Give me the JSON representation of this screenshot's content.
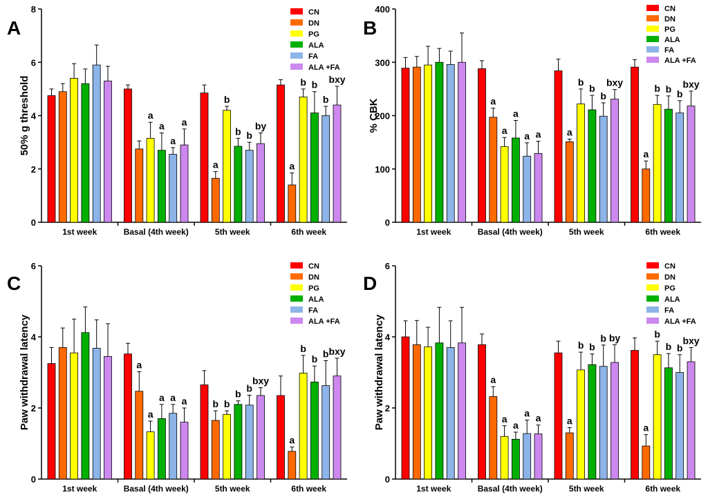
{
  "colors": {
    "CN": "#ff0000",
    "DN": "#ff6a00",
    "PG": "#ffff00",
    "ALA": "#00b000",
    "FA": "#8db4e8",
    "ALA +FA": "#cc88ee"
  },
  "chart_data": [
    {
      "type": "bar",
      "panel": "A",
      "ylabel": "50% g threshold",
      "ylim": [
        0,
        8
      ],
      "yticks": [
        0,
        2,
        4,
        6,
        8
      ],
      "categories": [
        "1st week",
        "Basal (4th week)",
        "5th week",
        "6th week"
      ],
      "series": [
        {
          "name": "CN",
          "values": [
            4.75,
            5.0,
            4.85,
            5.15
          ],
          "errors": [
            0.25,
            0.15,
            0.3,
            0.2
          ],
          "labels": [
            "",
            "",
            "",
            ""
          ]
        },
        {
          "name": "DN",
          "values": [
            4.9,
            2.75,
            1.65,
            1.4
          ],
          "errors": [
            0.3,
            0.3,
            0.25,
            0.45
          ],
          "labels": [
            "",
            "",
            "a",
            "a"
          ]
        },
        {
          "name": "PG",
          "values": [
            5.4,
            3.15,
            4.2,
            4.7
          ],
          "errors": [
            0.55,
            0.6,
            0.15,
            0.3
          ],
          "labels": [
            "",
            "a",
            "b",
            "b"
          ]
        },
        {
          "name": "ALA",
          "values": [
            5.2,
            2.7,
            2.85,
            4.1
          ],
          "errors": [
            0.55,
            0.65,
            0.3,
            0.8
          ],
          "labels": [
            "",
            "a",
            "b",
            "b"
          ]
        },
        {
          "name": "FA",
          "values": [
            5.9,
            2.55,
            2.7,
            4.0
          ],
          "errors": [
            0.75,
            0.25,
            0.3,
            0.35
          ],
          "labels": [
            "",
            "a",
            "b",
            "b"
          ]
        },
        {
          "name": "ALA +FA",
          "values": [
            5.3,
            2.9,
            2.95,
            4.4
          ],
          "errors": [
            0.55,
            0.6,
            0.4,
            0.7
          ],
          "labels": [
            "",
            "a",
            "by",
            "bxy"
          ]
        }
      ]
    },
    {
      "type": "bar",
      "panel": "B",
      "ylabel": "% CBK",
      "ylim": [
        0,
        400
      ],
      "yticks": [
        0,
        100,
        200,
        300,
        400
      ],
      "categories": [
        "1st week",
        "Basal (4th week)",
        "5th week",
        "6th week"
      ],
      "series": [
        {
          "name": "CN",
          "values": [
            289,
            288,
            284,
            291
          ],
          "errors": [
            20,
            15,
            22,
            14
          ],
          "labels": [
            "",
            "",
            "",
            ""
          ]
        },
        {
          "name": "DN",
          "values": [
            291,
            197,
            151,
            100
          ],
          "errors": [
            20,
            17,
            5,
            15
          ],
          "labels": [
            "",
            "a",
            "a",
            "a"
          ]
        },
        {
          "name": "PG",
          "values": [
            295,
            142,
            222,
            221
          ],
          "errors": [
            35,
            17,
            28,
            17
          ],
          "labels": [
            "",
            "a",
            "b",
            "b"
          ]
        },
        {
          "name": "ALA",
          "values": [
            300,
            158,
            211,
            212
          ],
          "errors": [
            26,
            33,
            27,
            25
          ],
          "labels": [
            "",
            "a",
            "b",
            "b"
          ]
        },
        {
          "name": "FA",
          "values": [
            296,
            124,
            199,
            205
          ],
          "errors": [
            25,
            25,
            25,
            23
          ],
          "labels": [
            "",
            "a",
            "b",
            "b"
          ]
        },
        {
          "name": "ALA +FA",
          "values": [
            300,
            129,
            231,
            218
          ],
          "errors": [
            55,
            23,
            18,
            28
          ],
          "labels": [
            "",
            "a",
            "bxy",
            "bxy"
          ]
        }
      ]
    },
    {
      "type": "bar",
      "panel": "C",
      "ylabel": "Paw withdrawal latency",
      "ylim": [
        0,
        6
      ],
      "yticks": [
        0,
        2,
        4,
        6
      ],
      "categories": [
        "1st week",
        "Basal (4th week)",
        "5th week",
        "6th week"
      ],
      "series": [
        {
          "name": "CN",
          "values": [
            3.25,
            3.52,
            2.65,
            2.35
          ],
          "errors": [
            0.45,
            0.3,
            0.4,
            0.55
          ],
          "labels": [
            "",
            "",
            "",
            ""
          ]
        },
        {
          "name": "DN",
          "values": [
            3.7,
            2.47,
            1.65,
            0.78
          ],
          "errors": [
            0.55,
            0.55,
            0.27,
            0.12
          ],
          "labels": [
            "",
            "a",
            "b",
            "a"
          ]
        },
        {
          "name": "PG",
          "values": [
            3.55,
            1.33,
            1.82,
            2.98
          ],
          "errors": [
            0.95,
            0.3,
            0.1,
            0.5
          ],
          "labels": [
            "",
            "a",
            "b",
            "b"
          ]
        },
        {
          "name": "ALA",
          "values": [
            4.12,
            1.7,
            2.1,
            2.73
          ],
          "errors": [
            0.72,
            0.4,
            0.1,
            0.45
          ],
          "labels": [
            "",
            "a",
            "b",
            "b"
          ]
        },
        {
          "name": "FA",
          "values": [
            3.68,
            1.85,
            2.08,
            2.63
          ],
          "errors": [
            0.8,
            0.25,
            0.28,
            0.7
          ],
          "labels": [
            "",
            "a",
            "b",
            "b"
          ]
        },
        {
          "name": "ALA +FA",
          "values": [
            3.45,
            1.6,
            2.35,
            2.9
          ],
          "errors": [
            0.92,
            0.4,
            0.22,
            0.5
          ],
          "labels": [
            "",
            "a",
            "bxy",
            "bxy"
          ]
        }
      ]
    },
    {
      "type": "bar",
      "panel": "D",
      "ylabel": "Paw withdrawal latency",
      "ylim": [
        0,
        6
      ],
      "yticks": [
        0,
        2,
        4,
        6
      ],
      "categories": [
        "1st week",
        "Basal (4th week)",
        "5th week",
        "6th week"
      ],
      "series": [
        {
          "name": "CN",
          "values": [
            4.0,
            3.78,
            3.55,
            3.62
          ],
          "errors": [
            0.45,
            0.3,
            0.33,
            0.35
          ],
          "labels": [
            "",
            "",
            "",
            ""
          ]
        },
        {
          "name": "DN",
          "values": [
            3.78,
            2.32,
            1.3,
            0.93
          ],
          "errors": [
            0.68,
            0.28,
            0.15,
            0.32
          ],
          "labels": [
            "",
            "a",
            "a",
            "a"
          ]
        },
        {
          "name": "PG",
          "values": [
            3.72,
            1.2,
            3.07,
            3.5
          ],
          "errors": [
            0.55,
            0.3,
            0.5,
            0.38
          ],
          "labels": [
            "",
            "a",
            "b",
            "b"
          ]
        },
        {
          "name": "ALA",
          "values": [
            3.83,
            1.12,
            3.22,
            3.13
          ],
          "errors": [
            1.0,
            0.2,
            0.3,
            0.4
          ],
          "labels": [
            "",
            "a",
            "b",
            "b"
          ]
        },
        {
          "name": "FA",
          "values": [
            3.7,
            1.28,
            3.17,
            3.0
          ],
          "errors": [
            0.75,
            0.38,
            0.6,
            0.5
          ],
          "labels": [
            "",
            "a",
            "b",
            "b"
          ]
        },
        {
          "name": "ALA +FA",
          "values": [
            3.83,
            1.27,
            3.28,
            3.3
          ],
          "errors": [
            1.0,
            0.25,
            0.5,
            0.4
          ],
          "labels": [
            "",
            "a",
            "by",
            "bxy"
          ]
        }
      ]
    }
  ]
}
